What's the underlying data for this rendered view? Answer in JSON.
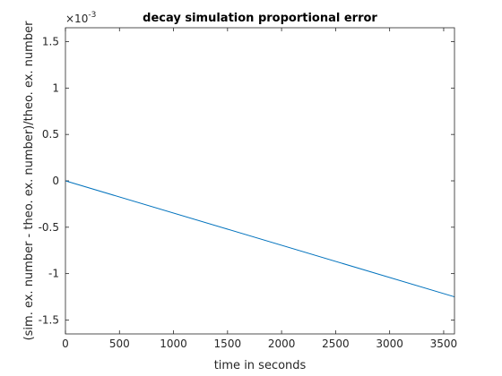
{
  "chart_data": {
    "type": "line",
    "title": "decay simulation proportional error",
    "xlabel": "time in seconds",
    "ylabel": "(sim. ex. number - theo. ex. number)/theo. ex. number",
    "xlim": [
      0,
      3600
    ],
    "ylim": [
      -1.65,
      1.65
    ],
    "y_scale_exponent_label": "×10",
    "y_scale_exponent_power": "-3",
    "xticks": [
      0,
      500,
      1000,
      1500,
      2000,
      2500,
      3000,
      3500
    ],
    "xtick_labels": [
      "0",
      "500",
      "1000",
      "1500",
      "2000",
      "2500",
      "3000",
      "3500"
    ],
    "yticks": [
      1.5,
      1,
      0.5,
      0,
      -0.5,
      -1,
      -1.5
    ],
    "ytick_labels": [
      "1.5",
      "1",
      "0.5",
      "0",
      "-0.5",
      "-1",
      "-1.5"
    ],
    "grid": false,
    "series": [
      {
        "color": "#0072BD",
        "x": [
          0,
          3600
        ],
        "y": [
          0,
          -1.25
        ]
      }
    ]
  }
}
